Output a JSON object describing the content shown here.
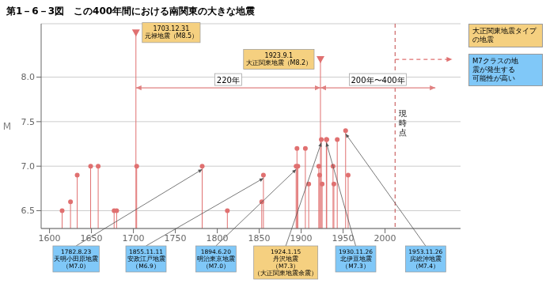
{
  "chart_data": {
    "type": "scatter",
    "title": "第1－6－3図　この400年間における南関東の大きな地震",
    "ylabel": "M",
    "xlim": [
      1590,
      2090
    ],
    "ylim": [
      6.3,
      8.6
    ],
    "xticks": [
      1600,
      1650,
      1700,
      1750,
      1800,
      1850,
      1900,
      1950,
      2000
    ],
    "yticks": [
      6.5,
      {
        "value": 7.0,
        "label": "7.0"
      },
      7.5,
      {
        "value": 8.0,
        "label": "8.0"
      }
    ],
    "grid": true,
    "legend": "right",
    "color": "#e07070",
    "series": [
      {
        "marker": "circle",
        "x": [
          1615,
          1625,
          1633,
          1649,
          1658,
          1677,
          1680,
          1703.9,
          1812,
          1853,
          1895,
          1896,
          1905,
          1909,
          1921,
          1922,
          1925,
          1930.5,
          1938,
          1939,
          1943,
          1956
        ],
        "values": [
          6.5,
          6.6,
          6.9,
          7.0,
          7.0,
          6.5,
          6.5,
          7.0,
          6.5,
          6.6,
          7.2,
          7.0,
          7.2,
          6.8,
          7.0,
          6.9,
          6.8,
          7.3,
          7.0,
          6.8,
          7.3,
          6.9
        ]
      },
      {
        "name": "大正関東地震タイプ\nの地震",
        "color": "#f5d080",
        "marker": "triangle",
        "x": [
          1703,
          1923
        ],
        "values": [
          8.5,
          8.2
        ],
        "labels": [
          "1703.12.31\n元禄地震（M8.5）",
          "1923.9.1\n大正関東地震（M8.2）"
        ]
      },
      {
        "name": "M7クラスの地\n震が発生する\n可能性が高い",
        "color": "#80c8f8",
        "marker": "circle",
        "x": [
          1782,
          1855,
          1894,
          1930,
          1953
        ],
        "values": [
          7.0,
          6.9,
          7.0,
          7.3,
          7.4
        ],
        "labels": [
          "1782.8.23\n天明小田原地震\n（M7.0）",
          "1855.11.11\n安政江戸地震\n（M6.9）",
          "1894.6.20\n明治東京地震\n（M7.0）",
          "1930.11.26\n北伊豆地震\n（M7.3）",
          "1953.11.26\n房総沖地震\n（M7.4）"
        ]
      },
      {
        "color": "#f5d080",
        "marker": "circle",
        "x": [
          1924
        ],
        "values": [
          7.3
        ],
        "labels": [
          "1924.1.15\n丹沢地震\n（M7.3）\n（大正関東地震余震）"
        ]
      }
    ],
    "annotations": [
      {
        "x1": 1703,
        "x2": 1923,
        "y": 7.88,
        "text": "220年",
        "color": "#e08080"
      },
      {
        "x1": 1923,
        "x2": 2060,
        "y": 7.88,
        "text": "200年〜400年",
        "color": "#e08080"
      },
      {
        "x": 2012,
        "text": "現\n時\n点",
        "color": "#cc6666",
        "line_style": "dashed"
      },
      {
        "x1": 2012,
        "x2": 2080,
        "y": 8.2,
        "color": "#e07070",
        "line_style": "dashed"
      }
    ]
  }
}
